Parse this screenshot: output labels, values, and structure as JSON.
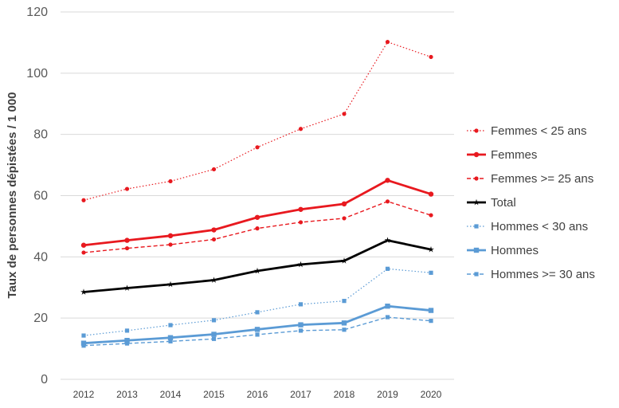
{
  "chart_data": {
    "type": "line",
    "title": "",
    "xlabel": "",
    "ylabel": "Taux de personnes dépistées / 1 000",
    "ylim": [
      0,
      120
    ],
    "yticks": [
      0,
      20,
      40,
      60,
      80,
      100,
      120
    ],
    "grid": "horizontal",
    "legend_position": "right",
    "x": [
      "2012",
      "2013",
      "2014",
      "2015",
      "2016",
      "2017",
      "2018",
      "2019",
      "2020"
    ],
    "series": [
      {
        "name": "Femmes < 25 ans",
        "color": "#e8191f",
        "style": "dotted",
        "marker": "circle",
        "values": [
          58.5,
          62.2,
          64.7,
          68.6,
          75.8,
          81.8,
          86.7,
          110.2,
          105.3
        ]
      },
      {
        "name": "Femmes",
        "color": "#e8191f",
        "style": "solid-thick",
        "marker": "circle",
        "values": [
          43.8,
          45.4,
          46.9,
          48.8,
          52.9,
          55.5,
          57.3,
          65.0,
          60.5
        ]
      },
      {
        "name": "Femmes >= 25 ans",
        "color": "#e8191f",
        "style": "dashed",
        "marker": "circle",
        "values": [
          41.4,
          42.8,
          44.0,
          45.7,
          49.3,
          51.3,
          52.6,
          58.1,
          53.6
        ]
      },
      {
        "name": "Total",
        "color": "#000000",
        "style": "solid-thick",
        "marker": "star",
        "values": [
          28.5,
          29.8,
          31.0,
          32.4,
          35.4,
          37.5,
          38.7,
          45.4,
          42.4
        ]
      },
      {
        "name": "Hommes < 30 ans",
        "color": "#5b9bd5",
        "style": "dotted",
        "marker": "square",
        "values": [
          14.3,
          15.9,
          17.7,
          19.3,
          21.9,
          24.5,
          25.6,
          36.1,
          34.8
        ]
      },
      {
        "name": "Hommes",
        "color": "#5b9bd5",
        "style": "solid-thick",
        "marker": "square",
        "values": [
          11.8,
          12.7,
          13.6,
          14.7,
          16.3,
          17.8,
          18.4,
          23.9,
          22.5
        ]
      },
      {
        "name": "Hommes >= 30 ans",
        "color": "#5b9bd5",
        "style": "dashed",
        "marker": "square",
        "values": [
          11.0,
          11.7,
          12.4,
          13.2,
          14.6,
          15.9,
          16.2,
          20.3,
          19.1
        ]
      }
    ]
  }
}
